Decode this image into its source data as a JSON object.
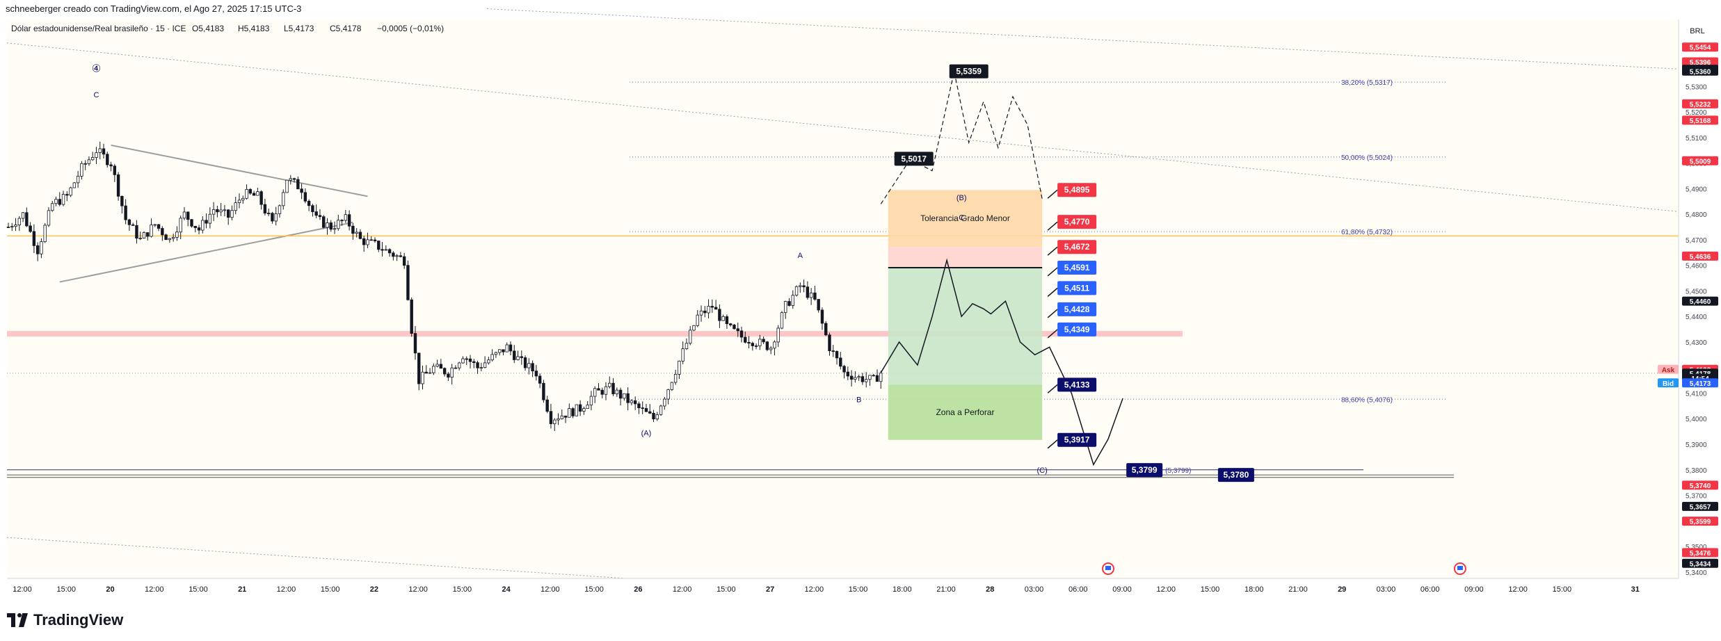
{
  "header": {
    "author_line": "schneeberger creado con TradingView.com, el Ago 27, 2025 17:15 UTC-3"
  },
  "legend": {
    "symbol": "Dólar estadounidense/Real brasileño · 15 · ICE",
    "open_label": "O",
    "open": "5,4183",
    "high_label": "H",
    "high": "5,4183",
    "low_label": "L",
    "low": "5,4173",
    "close_label": "C",
    "close": "5,4178",
    "change": "−0,0005 (−0,01%)"
  },
  "footer": {
    "brand": "TradingView"
  },
  "colors": {
    "bg": "#fffdf5",
    "grid_text": "#131722",
    "red": "#f23645",
    "blue": "#2962ff",
    "navy": "#0c0e6b",
    "black": "#131722",
    "orange": "#ffd8a8",
    "green": "#c8e6c9",
    "lime": "#b5e09a",
    "fib_text": "#3f3fa8",
    "yellow_line": "#ffc34d",
    "pink_band": "#ffb3b8"
  },
  "chart_data": {
    "type": "candlestick",
    "currency": "BRL",
    "y_ticks": [
      "5,5300",
      "5,5200",
      "5,5100",
      "5,5000",
      "5,4900",
      "5,4800",
      "5,4700",
      "5,4600",
      "5,4500",
      "5,4400",
      "5,4300",
      "5,4200",
      "5,4100",
      "5,4000",
      "5,3900",
      "5,3800",
      "5,3700",
      "5,3600",
      "5,3500",
      "5,3400"
    ],
    "ylim": [
      5.3375,
      5.5562
    ],
    "x_ticks": [
      {
        "label": "12:00",
        "i": 0
      },
      {
        "label": "15:00",
        "i": 12
      },
      {
        "label": "20",
        "i": 24
      },
      {
        "label": "12:00",
        "i": 36
      },
      {
        "label": "15:00",
        "i": 48
      },
      {
        "label": "21",
        "i": 60
      },
      {
        "label": "12:00",
        "i": 72
      },
      {
        "label": "15:00",
        "i": 84
      },
      {
        "label": "22",
        "i": 96
      },
      {
        "label": "12:00",
        "i": 108
      },
      {
        "label": "15:00",
        "i": 120
      },
      {
        "label": "24",
        "i": 132
      },
      {
        "label": "12:00",
        "i": 144
      },
      {
        "label": "15:00",
        "i": 156
      },
      {
        "label": "26",
        "i": 168
      },
      {
        "label": "12:00",
        "i": 180
      },
      {
        "label": "15:00",
        "i": 192
      },
      {
        "label": "27",
        "i": 204
      },
      {
        "label": "12:00",
        "i": 216
      },
      {
        "label": "15:00",
        "i": 228
      },
      {
        "label": "18:00",
        "i": 240
      },
      {
        "label": "21:00",
        "i": 252
      },
      {
        "label": "28",
        "i": 264
      },
      {
        "label": "03:00",
        "i": 276
      },
      {
        "label": "06:00",
        "i": 288
      },
      {
        "label": "09:00",
        "i": 300
      },
      {
        "label": "12:00",
        "i": 312
      },
      {
        "label": "15:00",
        "i": 324
      },
      {
        "label": "18:00",
        "i": 336
      },
      {
        "label": "21:00",
        "i": 348
      },
      {
        "label": "29",
        "i": 360
      },
      {
        "label": "03:00",
        "i": 372
      },
      {
        "label": "06:00",
        "i": 384
      },
      {
        "label": "09:00",
        "i": 396
      },
      {
        "label": "12:00",
        "i": 408
      },
      {
        "label": "15:00",
        "i": 420
      },
      {
        "label": "31",
        "i": 440
      }
    ],
    "price_path": [
      [
        0,
        5.475
      ],
      [
        4,
        5.48
      ],
      [
        8,
        5.466
      ],
      [
        12,
        5.484
      ],
      [
        16,
        5.487
      ],
      [
        20,
        5.498
      ],
      [
        24,
        5.505
      ],
      [
        28,
        5.5
      ],
      [
        32,
        5.478
      ],
      [
        36,
        5.47
      ],
      [
        40,
        5.476
      ],
      [
        44,
        5.47
      ],
      [
        48,
        5.48
      ],
      [
        52,
        5.474
      ],
      [
        56,
        5.482
      ],
      [
        60,
        5.479
      ],
      [
        64,
        5.488
      ],
      [
        68,
        5.487
      ],
      [
        72,
        5.476
      ],
      [
        76,
        5.494
      ],
      [
        80,
        5.49
      ],
      [
        84,
        5.478
      ],
      [
        88,
        5.475
      ],
      [
        92,
        5.478
      ],
      [
        96,
        5.47
      ],
      [
        100,
        5.468
      ],
      [
        104,
        5.465
      ],
      [
        108,
        5.462
      ],
      [
        110,
        5.435
      ],
      [
        112,
        5.415
      ],
      [
        116,
        5.42
      ],
      [
        120,
        5.418
      ],
      [
        124,
        5.425
      ],
      [
        128,
        5.42
      ],
      [
        132,
        5.424
      ],
      [
        136,
        5.428
      ],
      [
        140,
        5.422
      ],
      [
        144,
        5.418
      ],
      [
        148,
        5.4
      ],
      [
        152,
        5.402
      ],
      [
        156,
        5.404
      ],
      [
        160,
        5.41
      ],
      [
        164,
        5.412
      ],
      [
        168,
        5.408
      ],
      [
        172,
        5.404
      ],
      [
        176,
        5.4
      ],
      [
        180,
        5.412
      ],
      [
        184,
        5.426
      ],
      [
        188,
        5.44
      ],
      [
        192,
        5.444
      ],
      [
        196,
        5.436
      ],
      [
        200,
        5.432
      ],
      [
        204,
        5.43
      ],
      [
        208,
        5.428
      ],
      [
        212,
        5.444
      ],
      [
        216,
        5.452
      ],
      [
        220,
        5.446
      ],
      [
        224,
        5.428
      ],
      [
        228,
        5.418
      ],
      [
        232,
        5.416
      ],
      [
        236,
        5.415
      ],
      [
        238,
        5.418
      ]
    ],
    "hlines": {
      "yellow": 5.4715,
      "pink_band": [
        5.4325,
        5.4335
      ],
      "dotted_current": 5.4178,
      "black_1": 5.446,
      "bottom_1": 5.38,
      "bottom_2": 5.378,
      "bottom_3": 5.377
    },
    "fibs": [
      {
        "label": "38,20% (5,5317)",
        "y": 5.5317
      },
      {
        "label": "50,00% (5,5024)",
        "y": 5.5024
      },
      {
        "label": "61,80% (5,4732)",
        "y": 5.4732
      },
      {
        "label": "88,60% (5,4076)",
        "y": 5.4076
      }
    ],
    "zones": [
      {
        "label": "Tolerancia Grado Menor",
        "from": 5.4895,
        "to": 5.4672,
        "color": "orange"
      },
      {
        "label": "",
        "from": 5.4672,
        "to": 5.4591,
        "color": "pinkish"
      },
      {
        "label": "",
        "from": 5.4591,
        "to": 5.4133,
        "color": "green"
      },
      {
        "label": "Zona a Perforar",
        "from": 5.4133,
        "to": 5.3917,
        "color": "lime"
      }
    ],
    "right_tags": [
      {
        "text": "5,4895",
        "y": 5.4895,
        "color": "red"
      },
      {
        "text": "5,4770",
        "y": 5.477,
        "color": "red"
      },
      {
        "text": "5,4672",
        "y": 5.4672,
        "color": "red"
      },
      {
        "text": "5,4591",
        "y": 5.4591,
        "color": "blue"
      },
      {
        "text": "5,4511",
        "y": 5.4511,
        "color": "blue"
      },
      {
        "text": "5,4428",
        "y": 5.4428,
        "color": "blue"
      },
      {
        "text": "5,4349",
        "y": 5.4349,
        "color": "blue"
      },
      {
        "text": "5,4133",
        "y": 5.4133,
        "color": "navy"
      },
      {
        "text": "5,3917",
        "y": 5.3917,
        "color": "navy"
      }
    ],
    "projection_tags": [
      {
        "text": "5,5359",
        "y": 5.5359,
        "i": 262
      },
      {
        "text": "5,5017",
        "y": 5.5017,
        "i": 247
      }
    ],
    "bottom_tags": [
      {
        "text": "5,3799",
        "sub": "(5,3799)",
        "y": 5.3799,
        "i": 308
      },
      {
        "text": "5,3780",
        "y": 5.378,
        "i": 333
      }
    ],
    "axis_tags": [
      {
        "text": "5,5454",
        "y": 5.5454,
        "color": "red"
      },
      {
        "text": "5,5396",
        "y": 5.5396,
        "color": "red"
      },
      {
        "text": "5,5367",
        "y": 5.5367,
        "color": "black"
      },
      {
        "text": "5,5360",
        "y": 5.536,
        "color": "black"
      },
      {
        "text": "5,5232",
        "y": 5.5232,
        "color": "red"
      },
      {
        "text": "5,5168",
        "y": 5.5168,
        "color": "red"
      },
      {
        "text": "5,5009",
        "y": 5.5009,
        "color": "red"
      },
      {
        "text": "5,4636",
        "y": 5.4636,
        "color": "red"
      },
      {
        "text": "5,4460",
        "y": 5.446,
        "color": "black"
      },
      {
        "text": "5,4193",
        "y": 5.4193,
        "color": "red"
      },
      {
        "text": "5,4178",
        "y": 5.4178,
        "color": "black"
      },
      {
        "text": "14:54",
        "y": 5.4158,
        "color": "black"
      },
      {
        "text": "5,4173",
        "y": 5.414,
        "color": "blue"
      },
      {
        "text": "5,3740",
        "y": 5.374,
        "color": "red"
      },
      {
        "text": "5,3657",
        "y": 5.3657,
        "color": "black"
      },
      {
        "text": "5,3599",
        "y": 5.3599,
        "color": "red"
      },
      {
        "text": "5,3476",
        "y": 5.3476,
        "color": "red"
      },
      {
        "text": "5,3434",
        "y": 5.3434,
        "color": "black"
      }
    ],
    "ask_label": "Ask",
    "bid_label": "Bid",
    "wave_labels": [
      {
        "text": "④",
        "i": 24,
        "y": 5.5367
      },
      {
        "text": "C",
        "i": 24,
        "y": 5.5268
      },
      {
        "text": "(A)",
        "i": 174,
        "y": 5.3945
      },
      {
        "text": "A",
        "i": 216,
        "y": 5.464
      },
      {
        "text": "B",
        "i": 232,
        "y": 5.4076
      },
      {
        "text": "(B)",
        "i": 260,
        "y": 5.4865
      },
      {
        "text": "C",
        "i": 260,
        "y": 5.4788
      },
      {
        "text": "(C)",
        "i": 282,
        "y": 5.38
      }
    ],
    "solid_projection": [
      [
        238,
        5.418
      ],
      [
        243,
        5.43
      ],
      [
        248,
        5.421
      ],
      [
        252,
        5.44
      ],
      [
        256,
        5.462
      ],
      [
        260,
        5.44
      ],
      [
        263,
        5.445
      ],
      [
        266,
        5.443
      ],
      [
        268,
        5.441
      ],
      [
        272,
        5.446
      ],
      [
        276,
        5.43
      ],
      [
        280,
        5.425
      ],
      [
        284,
        5.428
      ],
      [
        290,
        5.41
      ],
      [
        296,
        5.382
      ],
      [
        300,
        5.392
      ],
      [
        304,
        5.408
      ]
    ],
    "dashed_projection": [
      [
        238,
        5.484
      ],
      [
        246,
        5.5015
      ],
      [
        252,
        5.497
      ],
      [
        258,
        5.5359
      ],
      [
        262,
        5.508
      ],
      [
        266,
        5.524
      ],
      [
        270,
        5.506
      ],
      [
        274,
        5.526
      ],
      [
        278,
        5.515
      ],
      [
        282,
        5.486
      ]
    ]
  }
}
